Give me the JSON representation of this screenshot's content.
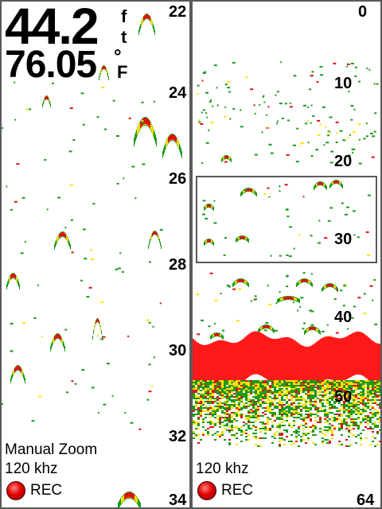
{
  "readout": {
    "depth_value": "44.2",
    "depth_unit_top": "f",
    "depth_unit_bottom": "t",
    "temp_value": "76.05",
    "temp_unit_top": "°",
    "temp_unit_bottom": "F"
  },
  "left_pane": {
    "mode": "Manual Zoom",
    "frequency": "120 khz",
    "rec_label": "REC",
    "depth_scale": [
      "22",
      "24",
      "26",
      "28",
      "30",
      "32",
      "34"
    ]
  },
  "right_pane": {
    "frequency": "120 khz",
    "rec_label": "REC",
    "depth_scale": [
      "0",
      "10",
      "20",
      "30",
      "40",
      "50",
      "64"
    ]
  },
  "colors": {
    "bottom_return": "#ff1a1a",
    "strong_return": "#e01010",
    "medium_return": "#ffe000",
    "weak_return": "#1a9a1a",
    "rec_indicator": "#e00000"
  }
}
